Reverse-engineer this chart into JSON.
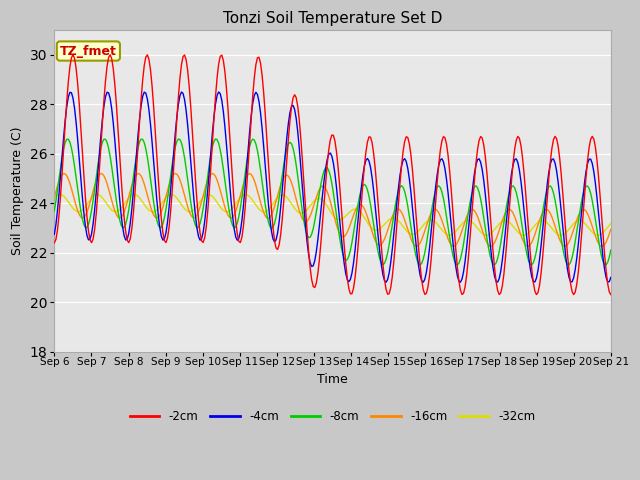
{
  "title": "Tonzi Soil Temperature Set D",
  "xlabel": "Time",
  "ylabel": "Soil Temperature (C)",
  "ylim": [
    18,
    31
  ],
  "yticks": [
    18,
    20,
    22,
    24,
    26,
    28,
    30
  ],
  "legend_labels": [
    "-2cm",
    "-4cm",
    "-8cm",
    "-16cm",
    "-32cm"
  ],
  "legend_colors": [
    "#ff0000",
    "#0000ee",
    "#00cc00",
    "#ff8800",
    "#dddd00"
  ],
  "annotation_text": "TZ_fmet",
  "annotation_bg": "#ffffcc",
  "annotation_border": "#999900",
  "x_tick_labels": [
    "Sep 6",
    "Sep 7",
    "Sep 8",
    "Sep 9",
    "Sep 10",
    "Sep 11",
    "Sep 12",
    "Sep 13",
    "Sep 14",
    "Sep 15",
    "Sep 16",
    "Sep 17",
    "Sep 18",
    "Sep 19",
    "Sep 20",
    "Sep 21"
  ],
  "figwidth": 6.4,
  "figheight": 4.8,
  "dpi": 100
}
